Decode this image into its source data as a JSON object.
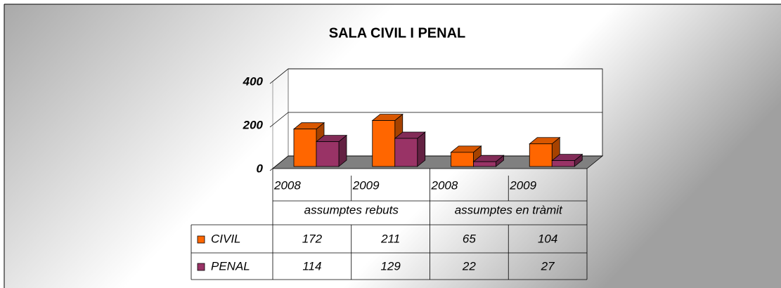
{
  "chart_data": {
    "type": "bar3d",
    "title": "SALA CIVIL I PENAL",
    "categories": [
      "2008",
      "2009",
      "2008",
      "2009"
    ],
    "category_groups": [
      "assumptes rebuts",
      "assumptes en tràmit"
    ],
    "series": [
      {
        "name": "CIVIL",
        "color": "#ff6600",
        "values": [
          172,
          211,
          65,
          104
        ]
      },
      {
        "name": "PENAL",
        "color": "#993366",
        "values": [
          114,
          129,
          22,
          27
        ]
      }
    ],
    "ylim": [
      0,
      400
    ],
    "yticks": [
      0,
      200,
      400
    ],
    "grid": true,
    "data_table": true
  }
}
